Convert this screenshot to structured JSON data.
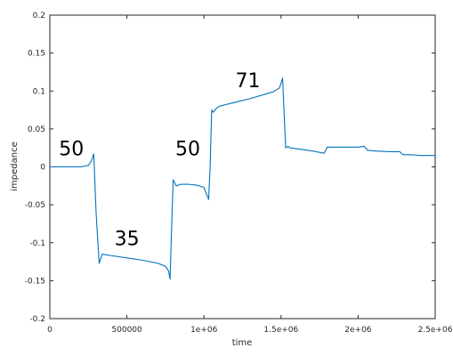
{
  "chart_data": {
    "type": "line",
    "title": "",
    "xlabel": "time",
    "ylabel": "impedance",
    "xlim": [
      0,
      2500000
    ],
    "ylim": [
      -0.2,
      0.2
    ],
    "grid": false,
    "x_ticks": [
      0,
      500000,
      1000000,
      1500000,
      2000000,
      2500000
    ],
    "x_tick_labels": [
      "0",
      "500000",
      "1e+06",
      "1.5e+06",
      "2e+06",
      "2.5e+06"
    ],
    "y_ticks": [
      -0.2,
      -0.15,
      -0.1,
      -0.05,
      0,
      0.05,
      0.1,
      0.15,
      0.2
    ],
    "y_tick_labels": [
      "-0.2",
      "-0.15",
      "-0.1",
      "-0.05",
      "0",
      "0.05",
      "0.1",
      "0.15",
      "0.2"
    ],
    "series": [
      {
        "color": "#0072bd",
        "x": [
          0,
          200000,
          250000,
          270000,
          285000,
          300000,
          320000,
          340000,
          400000,
          500000,
          600000,
          700000,
          750000,
          770000,
          780000,
          790000,
          800000,
          820000,
          850000,
          900000,
          950000,
          1000000,
          1030000,
          1040000,
          1050000,
          1060000,
          1080000,
          1100000,
          1200000,
          1300000,
          1400000,
          1450000,
          1490000,
          1510000,
          1520000,
          1530000,
          1545000,
          1560000,
          1600000,
          1700000,
          1780000,
          1800000,
          1850000,
          1900000,
          2000000,
          2040000,
          2060000,
          2100000,
          2200000,
          2270000,
          2290000,
          2350000,
          2400000,
          2500000
        ],
        "y": [
          0.0,
          0.0,
          0.002,
          0.008,
          0.017,
          -0.06,
          -0.127,
          -0.115,
          -0.117,
          -0.12,
          -0.123,
          -0.127,
          -0.131,
          -0.137,
          -0.148,
          -0.08,
          -0.017,
          -0.025,
          -0.023,
          -0.023,
          -0.024,
          -0.027,
          -0.043,
          0.0,
          0.075,
          0.072,
          0.077,
          0.08,
          0.085,
          0.09,
          0.096,
          0.099,
          0.104,
          0.117,
          0.07,
          0.025,
          0.027,
          0.025,
          0.024,
          0.021,
          0.018,
          0.026,
          0.026,
          0.026,
          0.026,
          0.027,
          0.022,
          0.021,
          0.02,
          0.02,
          0.016,
          0.016,
          0.015,
          0.015
        ]
      }
    ],
    "annotations": [
      {
        "text": "50",
        "x": 140000,
        "y": 0.015
      },
      {
        "text": "35",
        "x": 500000,
        "y": -0.103
      },
      {
        "text": "50",
        "x": 895000,
        "y": 0.015
      },
      {
        "text": "71",
        "x": 1285000,
        "y": 0.105
      }
    ]
  }
}
